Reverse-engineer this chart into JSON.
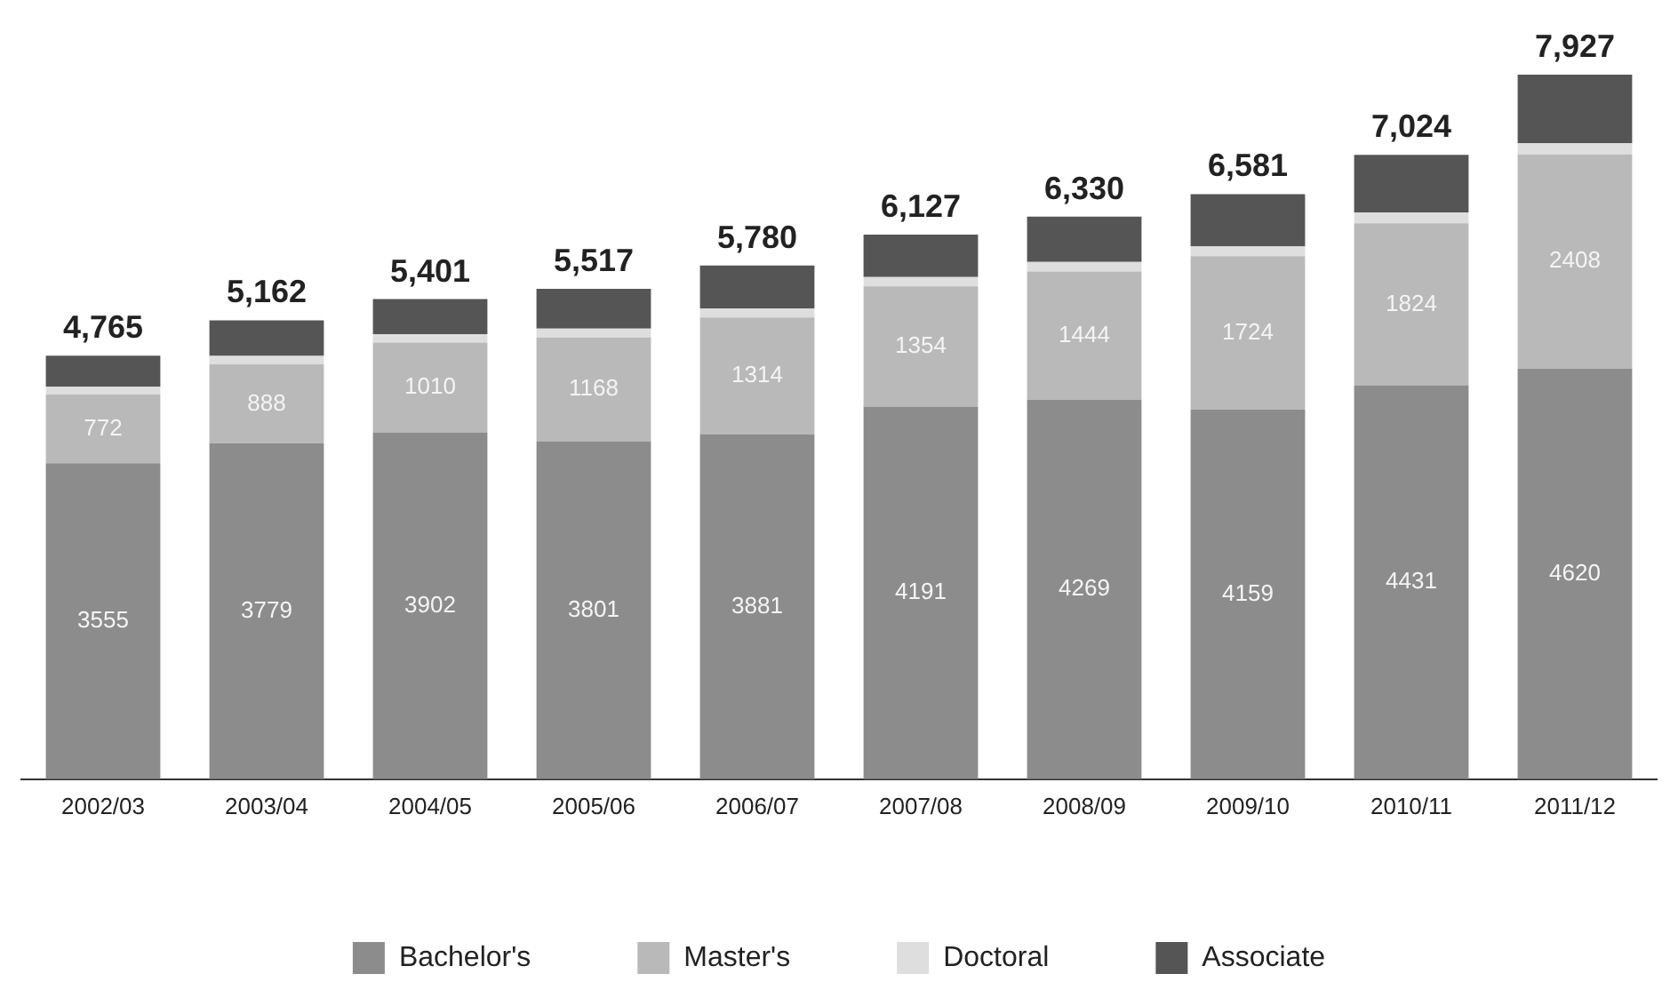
{
  "chart_data": {
    "type": "bar",
    "stacked": true,
    "legend": "bottom",
    "grid": false,
    "categories": [
      "2002/03",
      "2003/04",
      "2004/05",
      "2005/06",
      "2006/07",
      "2007/08",
      "2008/09",
      "2009/10",
      "2010/11",
      "2011/12"
    ],
    "series": [
      {
        "name": "Bachelor's",
        "color": "#8c8c8c",
        "values": [
          3555,
          3779,
          3902,
          3801,
          3881,
          4191,
          4269,
          4159,
          4431,
          4620
        ],
        "value_labels": [
          "3555",
          "3779",
          "3902",
          "3801",
          "3881",
          "4191",
          "4269",
          "4159",
          "4431",
          "4620"
        ]
      },
      {
        "name": "Master's",
        "color": "#b9b9b9",
        "values": [
          772,
          888,
          1010,
          1168,
          1314,
          1354,
          1444,
          1724,
          1824,
          2408
        ],
        "value_labels": [
          "772",
          "888",
          "1010",
          "1168",
          "1314",
          "1354",
          "1444",
          "1724",
          "1824",
          "2408"
        ]
      },
      {
        "name": "Doctoral",
        "color": "#dedede",
        "values": [
          90,
          95,
          95,
          100,
          100,
          105,
          105,
          110,
          120,
          125
        ]
      },
      {
        "name": "Associate",
        "color": "#555555",
        "values": [
          348,
          400,
          394,
          448,
          485,
          477,
          512,
          588,
          649,
          774
        ]
      }
    ],
    "totals": [
      "4,765",
      "5,162",
      "5,401",
      "5,517",
      "5,780",
      "6,127",
      "6,330",
      "6,581",
      "7,024",
      "7,927"
    ]
  }
}
